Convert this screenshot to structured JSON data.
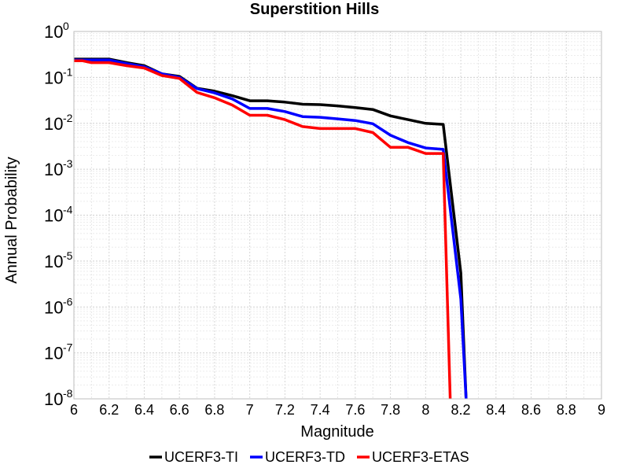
{
  "chart_data": {
    "type": "line",
    "title": "Superstition Hills",
    "xlabel": "Magnitude",
    "ylabel": "Annual Probability",
    "xlim": [
      6,
      9
    ],
    "ylim": [
      1e-08,
      1
    ],
    "yscale": "log",
    "grid": true,
    "legend_position": "bottom",
    "x_ticks": [
      "6",
      "6.2",
      "6.4",
      "6.6",
      "6.8",
      "7",
      "7.2",
      "7.4",
      "7.6",
      "7.8",
      "8",
      "8.2",
      "8.4",
      "8.6",
      "8.8",
      "9"
    ],
    "y_ticks": [
      {
        "base": "10",
        "exp": "0"
      },
      {
        "base": "10",
        "exp": "-1"
      },
      {
        "base": "10",
        "exp": "-2"
      },
      {
        "base": "10",
        "exp": "-3"
      },
      {
        "base": "10",
        "exp": "-4"
      },
      {
        "base": "10",
        "exp": "-5"
      },
      {
        "base": "10",
        "exp": "-6"
      },
      {
        "base": "10",
        "exp": "-7"
      },
      {
        "base": "10",
        "exp": "-8"
      }
    ],
    "series": [
      {
        "name": "UCERF3-TI",
        "color": "#000000",
        "x": [
          6.0,
          6.1,
          6.2,
          6.3,
          6.4,
          6.5,
          6.6,
          6.7,
          6.8,
          6.9,
          7.0,
          7.1,
          7.2,
          7.3,
          7.4,
          7.5,
          7.6,
          7.7,
          7.8,
          7.9,
          8.0,
          8.1,
          8.2,
          8.23
        ],
        "y": [
          0.25,
          0.25,
          0.25,
          0.21,
          0.18,
          0.12,
          0.105,
          0.058,
          0.05,
          0.04,
          0.031,
          0.031,
          0.029,
          0.026,
          0.0255,
          0.024,
          0.022,
          0.02,
          0.0145,
          0.012,
          0.01,
          0.0095,
          5.5e-06,
          1e-08
        ]
      },
      {
        "name": "UCERF3-TD",
        "color": "#0000ff",
        "x": [
          6.0,
          6.1,
          6.2,
          6.3,
          6.4,
          6.5,
          6.6,
          6.7,
          6.8,
          6.9,
          7.0,
          7.1,
          7.2,
          7.3,
          7.4,
          7.5,
          7.6,
          7.7,
          7.8,
          7.9,
          8.0,
          8.1,
          8.2,
          8.23
        ],
        "y": [
          0.24,
          0.24,
          0.24,
          0.2,
          0.17,
          0.12,
          0.1,
          0.057,
          0.046,
          0.034,
          0.021,
          0.021,
          0.018,
          0.014,
          0.0135,
          0.0125,
          0.0115,
          0.0098,
          0.0055,
          0.0038,
          0.0029,
          0.0027,
          1.5e-06,
          1e-08
        ]
      },
      {
        "name": "UCERF3-ETAS",
        "color": "#ff0000",
        "x": [
          6.0,
          6.05,
          6.1,
          6.2,
          6.3,
          6.4,
          6.5,
          6.6,
          6.7,
          6.8,
          6.9,
          7.0,
          7.1,
          7.2,
          7.3,
          7.4,
          7.5,
          7.6,
          7.7,
          7.8,
          7.9,
          8.0,
          8.1,
          8.14
        ],
        "y": [
          0.23,
          0.23,
          0.21,
          0.21,
          0.18,
          0.16,
          0.11,
          0.095,
          0.047,
          0.036,
          0.025,
          0.015,
          0.015,
          0.012,
          0.0085,
          0.0077,
          0.0077,
          0.0077,
          0.0063,
          0.003,
          0.003,
          0.0022,
          0.0022,
          1e-08
        ]
      }
    ]
  }
}
